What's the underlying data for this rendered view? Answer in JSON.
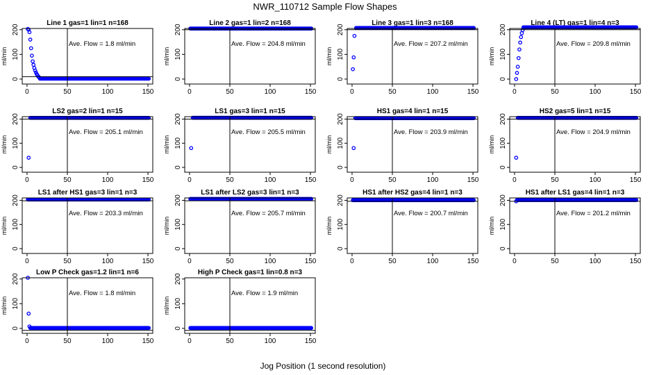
{
  "figure": {
    "title": "NWR_110712  Sample Flow Shapes",
    "xlabel": "Jog Position (1 second resolution)",
    "point_color": "#0000ff",
    "line_color": "#000000"
  },
  "chart_data": [
    {
      "type": "scatter",
      "title": "Line 1 gas=1 lin=1 n=168",
      "ylabel": "ml/min",
      "annotation": "Ave. Flow =  1.8  ml/min",
      "xlim": [
        0,
        150
      ],
      "ylim": [
        -20,
        205
      ],
      "x_ticks": [
        0,
        50,
        100,
        150
      ],
      "y_ticks": [
        0,
        100,
        200
      ],
      "vline": 50,
      "hline": 10,
      "baseline": 1.8,
      "baseline_range": [
        16,
        151
      ],
      "lead_points": [
        [
          1,
          203
        ],
        [
          2,
          200
        ],
        [
          3,
          190
        ],
        [
          4,
          160
        ],
        [
          5,
          125
        ],
        [
          6,
          95
        ],
        [
          7,
          72
        ],
        [
          8,
          58
        ],
        [
          9,
          45
        ],
        [
          10,
          35
        ],
        [
          11,
          27
        ],
        [
          12,
          20
        ],
        [
          13,
          15
        ],
        [
          14,
          10
        ],
        [
          15,
          7
        ]
      ]
    },
    {
      "type": "scatter",
      "title": "Line 2 gas=1 lin=2 n=168",
      "ylabel": "ml/min",
      "annotation": "Ave. Flow =  204.8  ml/min",
      "xlim": [
        0,
        150
      ],
      "ylim": [
        -20,
        205
      ],
      "x_ticks": [
        0,
        50,
        100,
        150
      ],
      "y_ticks": [
        0,
        100,
        200
      ],
      "vline": 50,
      "hline": 200,
      "baseline": 204.8,
      "baseline_range": [
        1,
        151
      ],
      "lead_points": []
    },
    {
      "type": "scatter",
      "title": "Line 3 gas=1 lin=3 n=168",
      "ylabel": "ml/min",
      "annotation": "Ave. Flow =  207.2  ml/min",
      "xlim": [
        0,
        150
      ],
      "ylim": [
        -20,
        205
      ],
      "x_ticks": [
        0,
        50,
        100,
        150
      ],
      "y_ticks": [
        0,
        100,
        200
      ],
      "vline": 50,
      "hline": 200,
      "baseline": 207.2,
      "baseline_range": [
        5,
        151
      ],
      "lead_points": [
        [
          1,
          40
        ],
        [
          2,
          88
        ],
        [
          3,
          175
        ]
      ]
    },
    {
      "type": "scatter",
      "title": "Line 4 (LT) gas=1 lin=4 n=3",
      "ylabel": "ml/min",
      "annotation": "Ave. Flow =  209.8  ml/min",
      "xlim": [
        0,
        150
      ],
      "ylim": [
        -20,
        205
      ],
      "x_ticks": [
        0,
        50,
        100,
        150
      ],
      "y_ticks": [
        0,
        100,
        200
      ],
      "vline": 50,
      "hline": 200,
      "baseline": 209.8,
      "baseline_range": [
        11,
        151
      ],
      "lead_points": [
        [
          2,
          0
        ],
        [
          3,
          25
        ],
        [
          4,
          50
        ],
        [
          5,
          85
        ],
        [
          6,
          120
        ],
        [
          7,
          148
        ],
        [
          8,
          170
        ],
        [
          9,
          186
        ],
        [
          10,
          198
        ]
      ]
    },
    {
      "type": "scatter",
      "title": "LS2 gas=2 lin=1 n=15",
      "ylabel": "ml/min",
      "annotation": "Ave. Flow =  205.1  ml/min",
      "xlim": [
        0,
        150
      ],
      "ylim": [
        -20,
        210
      ],
      "x_ticks": [
        0,
        50,
        100,
        150
      ],
      "y_ticks": [
        0,
        100,
        200
      ],
      "vline": 50,
      "hline": 200,
      "baseline": 205.1,
      "baseline_range": [
        4,
        151
      ],
      "lead_points": [
        [
          2,
          40
        ]
      ]
    },
    {
      "type": "scatter",
      "title": "LS1 gas=3 lin=1 n=15",
      "ylabel": "ml/min",
      "annotation": "Ave. Flow =  205.5  ml/min",
      "xlim": [
        0,
        150
      ],
      "ylim": [
        -20,
        210
      ],
      "x_ticks": [
        0,
        50,
        100,
        150
      ],
      "y_ticks": [
        0,
        100,
        200
      ],
      "vline": 50,
      "hline": 200,
      "baseline": 205.5,
      "baseline_range": [
        4,
        151
      ],
      "lead_points": [
        [
          2,
          80
        ]
      ]
    },
    {
      "type": "scatter",
      "title": "HS1 gas=4 lin=1 n=15",
      "ylabel": "ml/min",
      "annotation": "Ave. Flow =  203.9  ml/min",
      "xlim": [
        0,
        150
      ],
      "ylim": [
        -20,
        210
      ],
      "x_ticks": [
        0,
        50,
        100,
        150
      ],
      "y_ticks": [
        0,
        100,
        200
      ],
      "vline": 50,
      "hline": 200,
      "baseline": 203.9,
      "baseline_range": [
        4,
        151
      ],
      "lead_points": [
        [
          2,
          80
        ]
      ]
    },
    {
      "type": "scatter",
      "title": "HS2 gas=5 lin=1 n=15",
      "ylabel": "ml/min",
      "annotation": "Ave. Flow =  204.9  ml/min",
      "xlim": [
        0,
        150
      ],
      "ylim": [
        -20,
        210
      ],
      "x_ticks": [
        0,
        50,
        100,
        150
      ],
      "y_ticks": [
        0,
        100,
        200
      ],
      "vline": 50,
      "hline": 200,
      "baseline": 204.9,
      "baseline_range": [
        4,
        151
      ],
      "lead_points": [
        [
          2,
          40
        ]
      ]
    },
    {
      "type": "scatter",
      "title": "LS1 after HS1 gas=3 lin=1 n=3",
      "ylabel": "ml/min",
      "annotation": "Ave. Flow =  203.3  ml/min",
      "xlim": [
        0,
        150
      ],
      "ylim": [
        -20,
        210
      ],
      "x_ticks": [
        0,
        50,
        100,
        150
      ],
      "y_ticks": [
        0,
        100,
        200
      ],
      "vline": 50,
      "hline": 198,
      "baseline": 203.3,
      "baseline_range": [
        1,
        151
      ],
      "lead_points": []
    },
    {
      "type": "scatter",
      "title": "LS1 after LS2 gas=3 lin=1 n=3",
      "ylabel": "ml/min",
      "annotation": "Ave. Flow =  205.7  ml/min",
      "xlim": [
        0,
        150
      ],
      "ylim": [
        -20,
        210
      ],
      "x_ticks": [
        0,
        50,
        100,
        150
      ],
      "y_ticks": [
        0,
        100,
        200
      ],
      "vline": 50,
      "hline": 198,
      "baseline": 205.7,
      "baseline_range": [
        1,
        151
      ],
      "lead_points": []
    },
    {
      "type": "scatter",
      "title": "HS1 after HS2 gas=4 lin=1 n=3",
      "ylabel": "ml/min",
      "annotation": "Ave. Flow =  200.7  ml/min",
      "xlim": [
        0,
        150
      ],
      "ylim": [
        -20,
        210
      ],
      "x_ticks": [
        0,
        50,
        100,
        150
      ],
      "y_ticks": [
        0,
        100,
        200
      ],
      "vline": 50,
      "hline": 196,
      "baseline": 200.7,
      "baseline_range": [
        1,
        151
      ],
      "lead_points": []
    },
    {
      "type": "scatter",
      "title": "HS1 after LS1 gas=4 lin=1 n=3",
      "ylabel": "ml/min",
      "annotation": "Ave. Flow =  201.2  ml/min",
      "xlim": [
        0,
        150
      ],
      "ylim": [
        -20,
        210
      ],
      "x_ticks": [
        0,
        50,
        100,
        150
      ],
      "y_ticks": [
        0,
        100,
        200
      ],
      "vline": 50,
      "hline": 196,
      "baseline": 201.2,
      "baseline_range": [
        3,
        151
      ],
      "lead_points": [
        [
          2,
          196
        ]
      ]
    },
    {
      "type": "scatter",
      "title": "Low P Check gas=1.2 lin=1 n=6",
      "ylabel": "ml/min",
      "annotation": "Ave. Flow =  1.8  ml/min",
      "xlim": [
        0,
        150
      ],
      "ylim": [
        -20,
        205
      ],
      "x_ticks": [
        0,
        50,
        100,
        150
      ],
      "y_ticks": [
        0,
        100,
        200
      ],
      "vline": 50,
      "hline": -8,
      "baseline": 1.8,
      "baseline_range": [
        4,
        151
      ],
      "lead_points": [
        [
          1,
          205
        ],
        [
          2,
          60
        ],
        [
          3,
          8
        ]
      ]
    },
    {
      "type": "scatter",
      "title": "High P Check gas=1 lin=0.8 n=3",
      "ylabel": "ml/min",
      "annotation": "Ave. Flow =  1.9  ml/min",
      "xlim": [
        0,
        150
      ],
      "ylim": [
        -20,
        205
      ],
      "x_ticks": [
        0,
        50,
        100,
        150
      ],
      "y_ticks": [
        0,
        100,
        200
      ],
      "vline": 50,
      "hline": -8,
      "baseline": 1.9,
      "baseline_range": [
        1,
        151
      ],
      "lead_points": []
    }
  ]
}
